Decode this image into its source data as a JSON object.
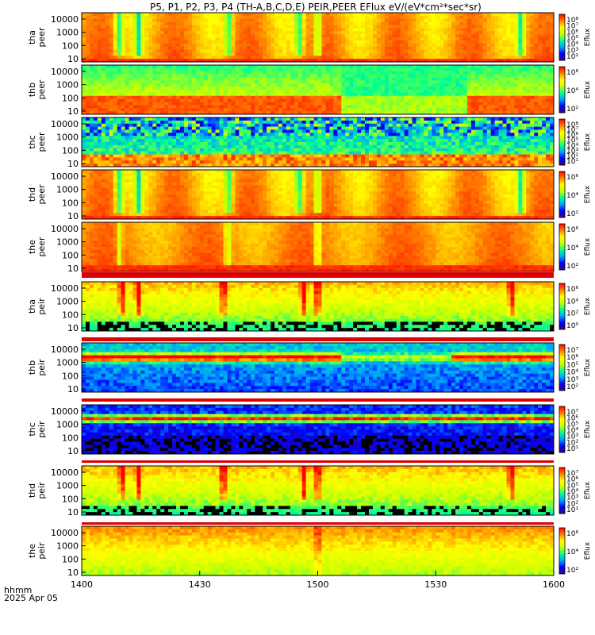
{
  "title": "P5, P1, P2, P3, P4 (TH-A,B,C,D,E) PEIR,PEER EFlux eV/(eV*cm²*sec*sr)",
  "chart_data": {
    "type": "heatmap",
    "time_axis": {
      "label_line1": "hhmm",
      "label_line2": "2025 Apr 05",
      "ticks": [
        "1400",
        "1430",
        "1500",
        "1530",
        "1600"
      ],
      "range": [
        "14:00",
        "16:00"
      ]
    },
    "y_scale": "log",
    "colorscale": [
      "#3b0078",
      "#0000ff",
      "#00a0ff",
      "#00ff90",
      "#c8ff00",
      "#ffff00",
      "#ff8000",
      "#ff0000"
    ],
    "panels": [
      {
        "probe": "tha",
        "species": "peer",
        "yticks": [
          "10000",
          "1000",
          "100",
          "10"
        ],
        "cb_ticks": [
          "10⁸",
          "10⁷",
          "10⁶",
          "10⁵",
          "10⁴",
          "10³",
          "10²"
        ],
        "cb_label": "Eflux",
        "profile": "hot_electrons"
      },
      {
        "probe": "thb",
        "species": "peer",
        "yticks": [
          "10000",
          "1000",
          "100",
          "10"
        ],
        "cb_ticks": [
          "10⁶",
          "10⁴",
          "10²"
        ],
        "cb_label": "Eflux",
        "profile": "thb_electrons"
      },
      {
        "probe": "thc",
        "species": "peer",
        "yticks": [
          "10000",
          "1000",
          "100",
          "10"
        ],
        "cb_ticks": [
          "10⁸",
          "10⁷",
          "10⁶",
          "10⁵",
          "10⁴",
          "10³",
          "10²",
          "10¹"
        ],
        "cb_label": "Eflux",
        "profile": "noisy_electrons"
      },
      {
        "probe": "thd",
        "species": "peer",
        "yticks": [
          "10000",
          "1000",
          "100",
          "10"
        ],
        "cb_ticks": [
          "10⁶",
          "10⁴",
          "10²"
        ],
        "cb_label": "Eflux",
        "profile": "hot_electrons"
      },
      {
        "probe": "the",
        "species": "peer",
        "yticks": [
          "10000",
          "1000",
          "100",
          "10"
        ],
        "cb_ticks": [
          "10⁶",
          "10⁴",
          "10²"
        ],
        "cb_label": "Eflux",
        "profile": "hot_electrons_e"
      },
      {
        "probe": "tha",
        "species": "peir",
        "yticks": [
          "10000",
          "1000",
          "100",
          "10"
        ],
        "cb_ticks": [
          "10⁶",
          "10⁴",
          "10²",
          "10⁰"
        ],
        "cb_label": "Eflux",
        "profile": "ions"
      },
      {
        "probe": "thb",
        "species": "peir",
        "yticks": [
          "10000",
          "1000",
          "100",
          "10"
        ],
        "cb_ticks": [
          "10⁷",
          "10⁶",
          "10⁵",
          "10⁴",
          "10³",
          "10²"
        ],
        "cb_label": "Eflux",
        "profile": "ions_band"
      },
      {
        "probe": "thc",
        "species": "peir",
        "yticks": [
          "10000",
          "1000",
          "100",
          "10"
        ],
        "cb_ticks": [
          "10⁷",
          "10⁶",
          "10⁵",
          "10⁴",
          "10³",
          "10²",
          "10¹"
        ],
        "cb_label": "Eflux",
        "profile": "ions_band_c"
      },
      {
        "probe": "thd",
        "species": "peir",
        "yticks": [
          "10000",
          "1000",
          "100",
          "10"
        ],
        "cb_ticks": [
          "10⁷",
          "10⁶",
          "10⁵",
          "10⁴",
          "10³",
          "10²",
          "10¹"
        ],
        "cb_label": "Eflux",
        "profile": "ions"
      },
      {
        "probe": "the",
        "species": "peir",
        "yticks": [
          "10000",
          "1000",
          "100",
          "10"
        ],
        "cb_ticks": [
          "10⁶",
          "10⁴",
          "10²"
        ],
        "cb_label": "Eflux",
        "profile": "ions_e"
      }
    ]
  }
}
